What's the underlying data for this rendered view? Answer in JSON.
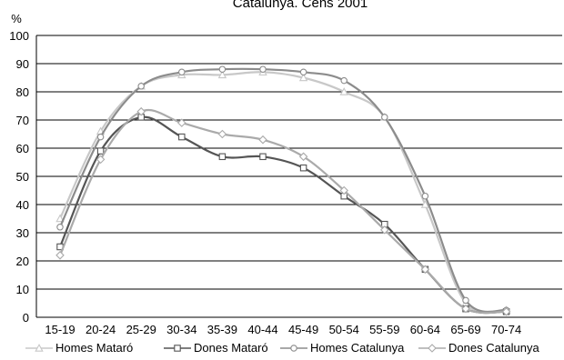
{
  "chart_data": {
    "type": "line",
    "title": "Catalunya. Cens 2001",
    "ylabel": "%",
    "ylim": [
      0,
      100
    ],
    "yticks": [
      0,
      10,
      20,
      30,
      40,
      50,
      60,
      70,
      80,
      90,
      100
    ],
    "grid": true,
    "legend": "bottom",
    "categories": [
      "15-19",
      "20-24",
      "25-29",
      "30-34",
      "35-39",
      "40-44",
      "45-49",
      "50-54",
      "55-59",
      "60-64",
      "65-69",
      "70-74"
    ],
    "series": [
      {
        "name": "Homes Mataró",
        "marker": "triangle",
        "color": "#c8c8c8",
        "values": [
          35,
          66,
          82,
          86,
          86,
          87,
          85,
          80,
          71,
          40,
          5,
          2.5
        ]
      },
      {
        "name": "Dones Mataró",
        "marker": "square",
        "color": "#555555",
        "values": [
          25,
          59,
          71,
          64,
          57,
          57,
          53,
          43,
          33,
          17,
          3,
          2
        ]
      },
      {
        "name": "Homes Catalunya",
        "marker": "circle",
        "color": "#8c8c8c",
        "values": [
          32,
          64,
          82,
          87,
          88,
          88,
          87,
          84,
          71,
          43,
          6,
          2.5
        ]
      },
      {
        "name": "Dones Catalunya",
        "marker": "diamond",
        "color": "#aaaaaa",
        "values": [
          22,
          56,
          73,
          69,
          65,
          63,
          57,
          45,
          31,
          17,
          3,
          2
        ]
      }
    ]
  }
}
